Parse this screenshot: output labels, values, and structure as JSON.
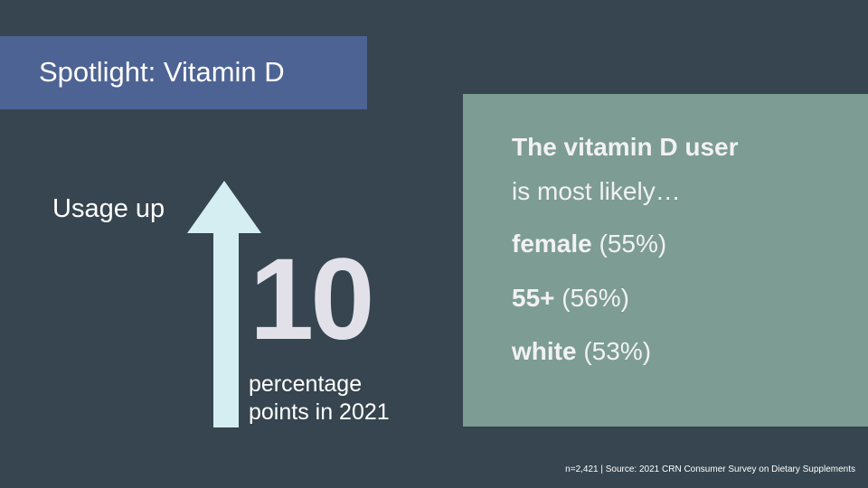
{
  "slide": {
    "title": "Spotlight: Vitamin D",
    "usage_label": "Usage up",
    "big_number": "10",
    "pp_line1": "percentage",
    "pp_line2": "points in 2021",
    "panel": {
      "heading": "The vitamin D user",
      "subheading": "is most likely…",
      "items": [
        {
          "label": "female",
          "value": "(55%)"
        },
        {
          "label": "55+",
          "value": "(56%)"
        },
        {
          "label": "white",
          "value": "(53%)"
        }
      ]
    },
    "source": "n=2,421 | Source: 2021 CRN Consumer Survey on Dietary Supplements"
  },
  "colors": {
    "background": "#36454f",
    "title_box": "#4d6394",
    "panel": "#7d9c93",
    "arrow": "#d5eef2"
  },
  "icons": {
    "arrow": "up-arrow-icon"
  }
}
